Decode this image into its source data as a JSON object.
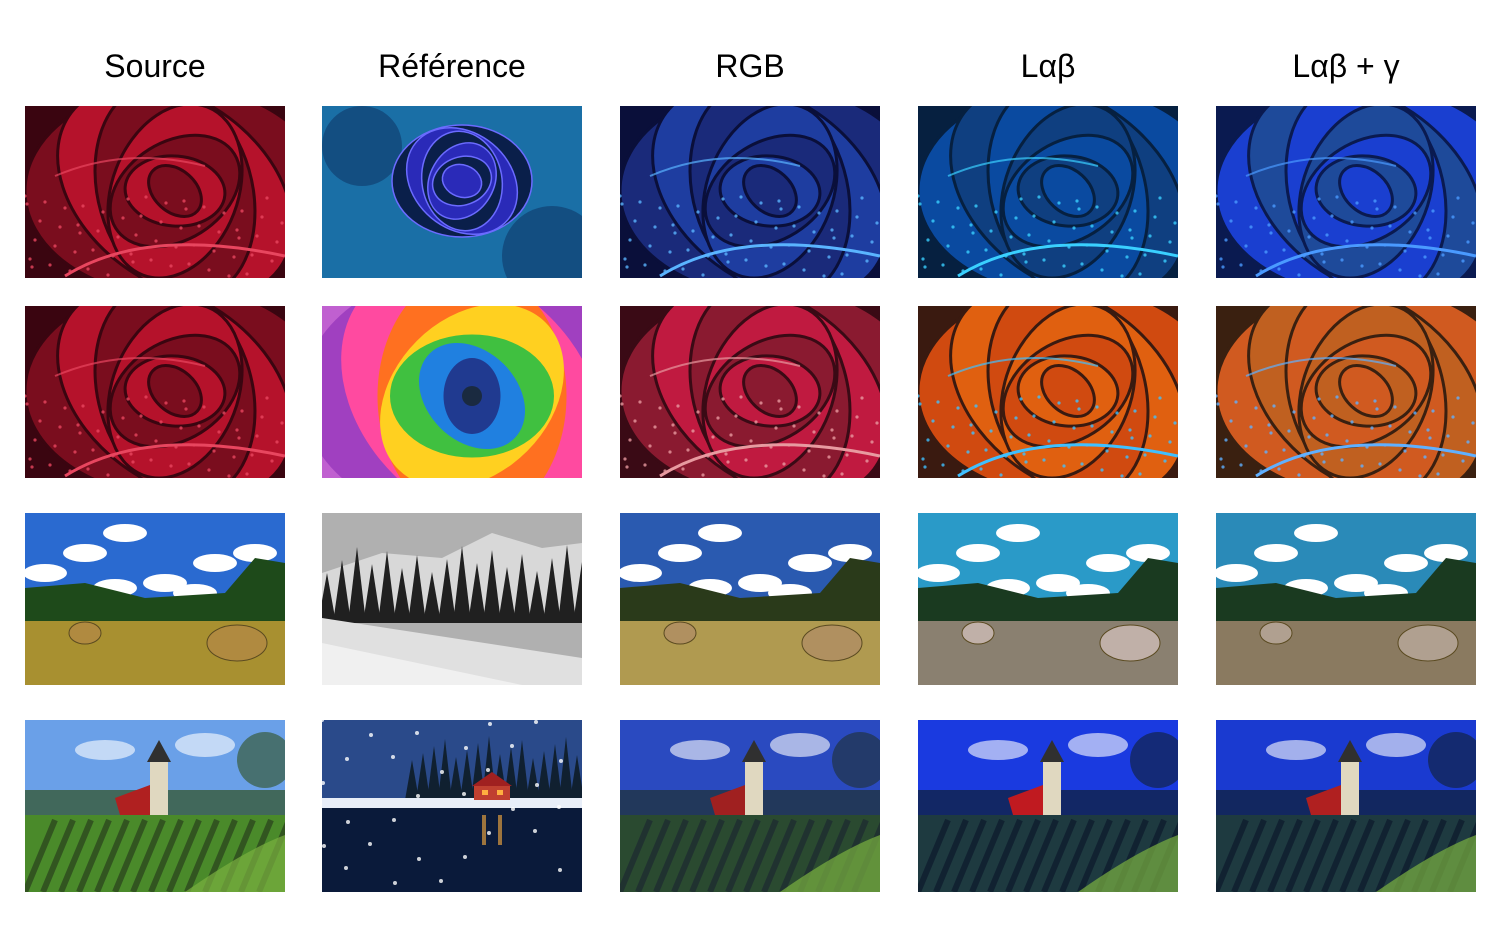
{
  "columns": [
    {
      "label": "Source"
    },
    {
      "label": "Référence"
    },
    {
      "label": "RGB"
    },
    {
      "label": "Lαβ"
    },
    {
      "label": "Lαβ + γ"
    }
  ],
  "rows": [
    {
      "scene": "red-rose",
      "cells": [
        {
          "subject": "rose",
          "palette": {
            "bg": "#7a0d1e",
            "mid": "#b5122b",
            "hi": "#e8465f",
            "dark": "#3a0510"
          }
        },
        {
          "subject": "rose-small",
          "palette": {
            "bg": "#1a6fa6",
            "mid": "#2a2ab8",
            "hi": "#6b6bff",
            "dark": "#0a1f4a"
          }
        },
        {
          "subject": "rose",
          "palette": {
            "bg": "#1a2a7a",
            "mid": "#1e3da0",
            "hi": "#5ab4ff",
            "dark": "#0a0f3a"
          }
        },
        {
          "subject": "rose",
          "palette": {
            "bg": "#0a4aa0",
            "mid": "#0f3f80",
            "hi": "#3ad0ff",
            "dark": "#062040"
          }
        },
        {
          "subject": "rose",
          "palette": {
            "bg": "#1a3fd0",
            "mid": "#1e4a9a",
            "hi": "#4a9aff",
            "dark": "#0a1a50"
          }
        }
      ]
    },
    {
      "scene": "rainbow-rose",
      "cells": [
        {
          "subject": "rose",
          "palette": {
            "bg": "#7a0d1e",
            "mid": "#b5122b",
            "hi": "#e8465f",
            "dark": "#3a0510"
          }
        },
        {
          "subject": "rainbow",
          "palette": {
            "bg": "#a040c0",
            "mid": "#ff4aa0",
            "hi": "#ffd020",
            "dark": "#20a040"
          }
        },
        {
          "subject": "rose",
          "palette": {
            "bg": "#8a1a30",
            "mid": "#c01a40",
            "hi": "#e89aa0",
            "dark": "#3a0a15"
          }
        },
        {
          "subject": "rose",
          "palette": {
            "bg": "#d04a10",
            "mid": "#e06010",
            "hi": "#40c0ff",
            "dark": "#3a1a10"
          }
        },
        {
          "subject": "rose",
          "palette": {
            "bg": "#d05a20",
            "mid": "#c06020",
            "hi": "#60b0ff",
            "dark": "#3a2010"
          }
        }
      ]
    },
    {
      "scene": "hay-field",
      "cells": [
        {
          "subject": "field",
          "palette": {
            "sky": "#2a6ad0",
            "tree": "#1e4a1a",
            "ground": "#a89030",
            "bale": "#b08a40"
          }
        },
        {
          "subject": "mountain",
          "palette": {
            "sky": "#b0b0b0",
            "tree": "#202020",
            "ground": "#e0e0e0",
            "bale": "#808080"
          }
        },
        {
          "subject": "field",
          "palette": {
            "sky": "#2a5ab0",
            "tree": "#2a3a1a",
            "ground": "#b09a50",
            "bale": "#b09060"
          }
        },
        {
          "subject": "field",
          "palette": {
            "sky": "#2a9ac8",
            "tree": "#1a3a20",
            "ground": "#8a8070",
            "bale": "#c0b0a8"
          }
        },
        {
          "subject": "field",
          "palette": {
            "sky": "#2a8ab8",
            "tree": "#1a3a20",
            "ground": "#8a7a60",
            "bale": "#b0a090"
          }
        }
      ]
    },
    {
      "scene": "village-vineyard",
      "cells": [
        {
          "subject": "village",
          "palette": {
            "sky": "#6aa0e8",
            "ground": "#4a8a2a",
            "roof": "#b02020",
            "tree": "#305020"
          }
        },
        {
          "subject": "winter-night",
          "palette": {
            "sky": "#2a4a8a",
            "ground": "#0a1a3a",
            "roof": "#a02020",
            "tree": "#102030"
          }
        },
        {
          "subject": "village",
          "palette": {
            "sky": "#2a4ac0",
            "ground": "#2a4a30",
            "roof": "#a02020",
            "tree": "#203030"
          }
        },
        {
          "subject": "village",
          "palette": {
            "sky": "#1a3ae0",
            "ground": "#1e3a40",
            "roof": "#c01a20",
            "tree": "#102030"
          }
        },
        {
          "subject": "village",
          "palette": {
            "sky": "#1a3ad0",
            "ground": "#1e3a40",
            "roof": "#b02020",
            "tree": "#102030"
          }
        }
      ]
    }
  ]
}
